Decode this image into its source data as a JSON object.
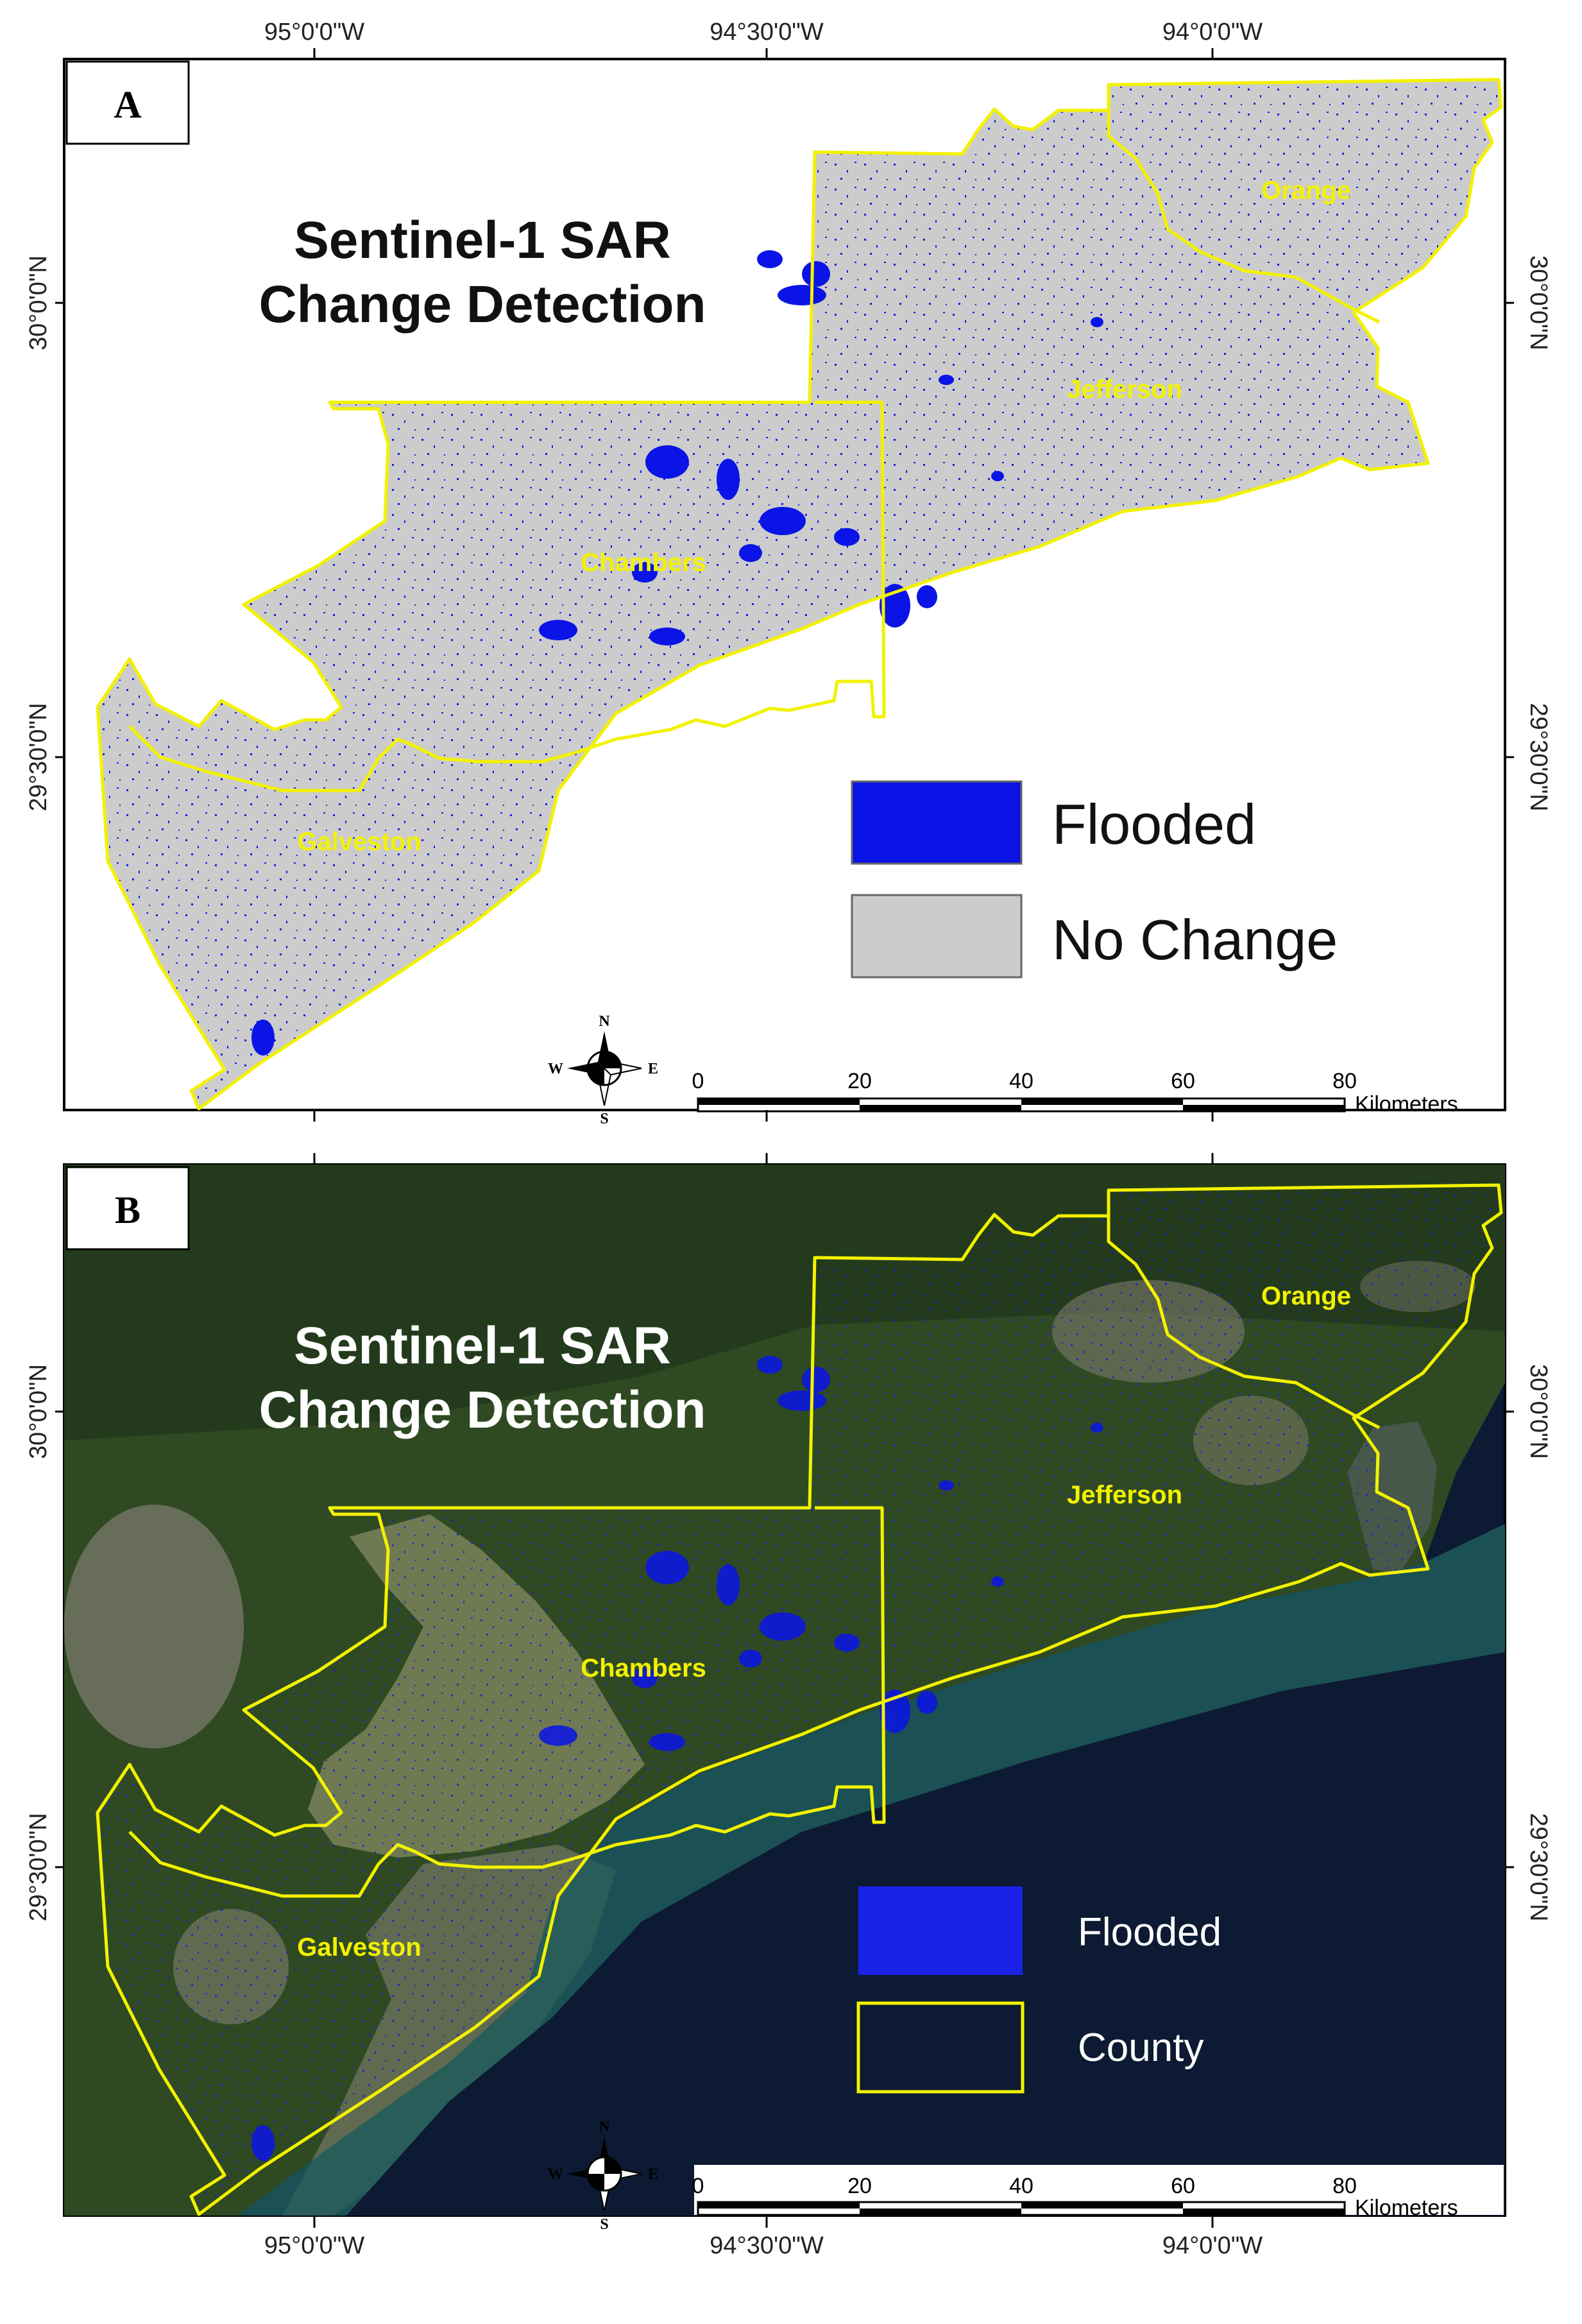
{
  "panel_a": {
    "label": "A",
    "title_line1": "Sentinel-1 SAR",
    "title_line2": "Change Detection",
    "counties": [
      "Orange",
      "Jefferson",
      "Chambers",
      "Galveston"
    ],
    "legend": [
      {
        "label": "Flooded",
        "color": "#0a14e6"
      },
      {
        "label": "No Change",
        "color": "#cccccc"
      }
    ]
  },
  "panel_b": {
    "label": "B",
    "title_line1": "Sentinel-1 SAR",
    "title_line2": "Change Detection",
    "counties": [
      "Orange",
      "Jefferson",
      "Chambers",
      "Galveston"
    ],
    "legend": [
      {
        "label": "Flooded",
        "color": "#1a22e6"
      },
      {
        "label": "County",
        "color": "#f2f200"
      }
    ]
  },
  "axes": {
    "longitudes": [
      "95°0'0\"W",
      "94°30'0\"W",
      "94°0'0\"W"
    ],
    "latitudes": [
      "30°0'0\"N",
      "29°30'0\"N"
    ]
  },
  "scale_bar": {
    "ticks": [
      "0",
      "20",
      "40",
      "60",
      "80"
    ],
    "unit": "Kilometers"
  },
  "compass": {
    "n": "N",
    "s": "S",
    "e": "E",
    "w": "W"
  },
  "colors": {
    "county_line": "#f2f200",
    "flooded": "#0a14e6",
    "no_change": "#cccccc",
    "sea": "#0c1a33",
    "land": "#2f4a23"
  }
}
